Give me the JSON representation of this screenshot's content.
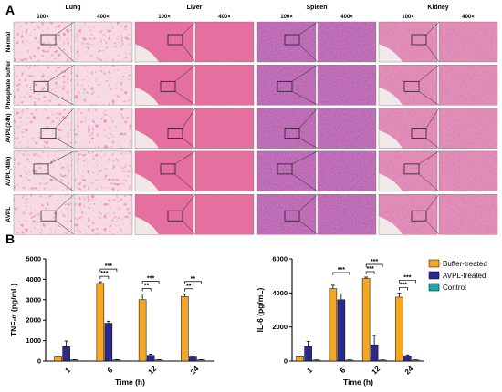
{
  "figure": {
    "panel_a": {
      "label": "A",
      "tissues": [
        "Lung",
        "Liver",
        "Spleen",
        "Kidney"
      ],
      "magnifications": [
        "100×",
        "400×"
      ],
      "groups": [
        "Normal",
        "Phosphate buffer",
        "AVPL(24h)",
        "AVPL(48h)",
        "AVPL"
      ]
    },
    "panel_b": {
      "label": "B",
      "colors": {
        "Buffer-treated": "#F5A623",
        "AVPL-treated": "#2B2A8C",
        "Control": "#1FA7A7"
      }
    }
  },
  "chart_data": [
    {
      "type": "bar",
      "ylabel": "TNF-α (pg/mL)",
      "xlabel": "Time  (h)",
      "categories": [
        "1",
        "6",
        "12",
        "24"
      ],
      "ylim": [
        0,
        5000
      ],
      "yticks": [
        "0",
        "1000",
        "2000",
        "3000",
        "4000",
        "5000"
      ],
      "series": [
        {
          "name": "Buffer-treated",
          "values": [
            200,
            3800,
            3000,
            3150
          ],
          "errors": [
            40,
            80,
            280,
            120
          ]
        },
        {
          "name": "AVPL-treated",
          "values": [
            700,
            1850,
            280,
            200
          ],
          "errors": [
            280,
            100,
            60,
            40
          ]
        },
        {
          "name": "Control",
          "values": [
            60,
            60,
            60,
            60
          ],
          "errors": [
            10,
            10,
            10,
            10
          ]
        }
      ],
      "significance": [
        {
          "label": "***",
          "group": 1,
          "from": 0,
          "to": 1,
          "level": 0
        },
        {
          "label": "***",
          "group": 1,
          "from": 0,
          "to": 2,
          "level": 1
        },
        {
          "label": "**",
          "group": 2,
          "from": 0,
          "to": 1,
          "level": 0
        },
        {
          "label": "***",
          "group": 2,
          "from": 0,
          "to": 2,
          "level": 1
        },
        {
          "label": "**",
          "group": 3,
          "from": 0,
          "to": 1,
          "level": 0
        },
        {
          "label": "**",
          "group": 3,
          "from": 0,
          "to": 2,
          "level": 1
        }
      ]
    },
    {
      "type": "bar",
      "ylabel": "IL-6 (pg/mL)",
      "xlabel": "Time  (h)",
      "categories": [
        "1",
        "6",
        "12",
        "24"
      ],
      "ylim": [
        0,
        6000
      ],
      "yticks": [
        "0",
        "2000",
        "4000",
        "6000"
      ],
      "series": [
        {
          "name": "Buffer-treated",
          "values": [
            250,
            4250,
            4850,
            3750
          ],
          "errors": [
            40,
            200,
            80,
            250
          ]
        },
        {
          "name": "AVPL-treated",
          "values": [
            850,
            3600,
            950,
            300
          ],
          "errors": [
            300,
            350,
            550,
            60
          ]
        },
        {
          "name": "Control",
          "values": [
            60,
            60,
            60,
            60
          ],
          "errors": [
            10,
            10,
            10,
            10
          ]
        }
      ],
      "significance": [
        {
          "label": "***",
          "group": 1,
          "from": 0,
          "to": 2,
          "level": 1
        },
        {
          "label": "***",
          "group": 2,
          "from": 0,
          "to": 1,
          "level": 0
        },
        {
          "label": "***",
          "group": 2,
          "from": 0,
          "to": 2,
          "level": 1
        },
        {
          "label": "***",
          "group": 3,
          "from": 0,
          "to": 1,
          "level": 0
        },
        {
          "label": "***",
          "group": 3,
          "from": 0,
          "to": 2,
          "level": 1
        }
      ],
      "legend": [
        "Buffer-treated",
        "AVPL-treated",
        "Control"
      ]
    }
  ]
}
